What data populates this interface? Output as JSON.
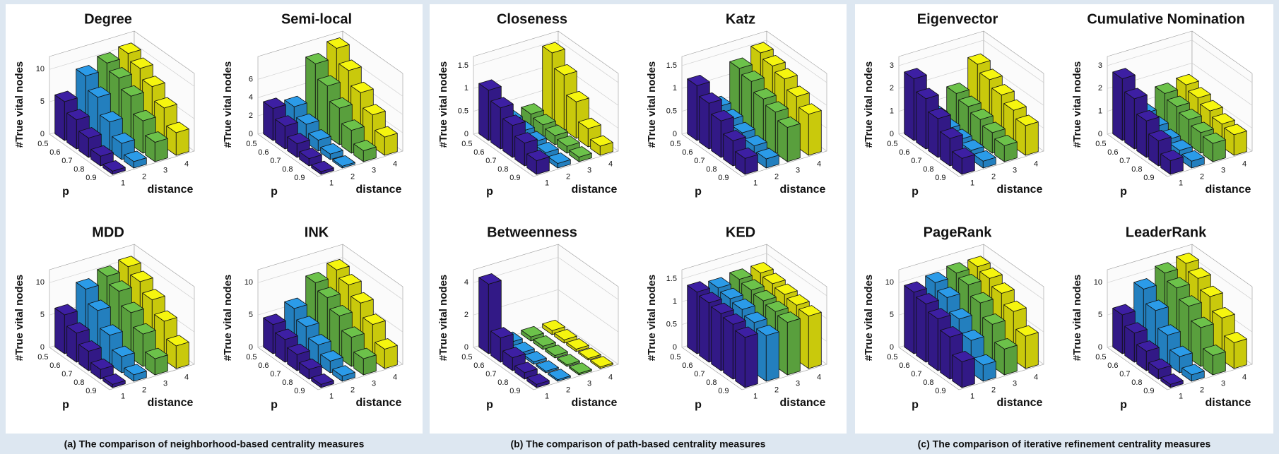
{
  "panels": [
    {
      "caption": "(a) The comparison of neighborhood-based centrality measures"
    },
    {
      "caption": "(b) The comparison of path-based centrality measures"
    },
    {
      "caption": "(c) The comparison of iterative refinement centrality measures"
    }
  ],
  "chart_data": [
    {
      "type": "bar3d",
      "title": "Degree",
      "zlabel": "#True vital nodes",
      "xlabel": "p",
      "ylabel": "distance",
      "x": [
        0.5,
        0.6,
        0.7,
        0.8,
        0.9
      ],
      "y": [
        1,
        2,
        3,
        4
      ],
      "colors": [
        "#3d1fa3",
        "#2b9be8",
        "#6cc24a",
        "#f5f50f"
      ],
      "zlim": [
        0,
        12
      ],
      "zticks": [
        0,
        5,
        10
      ],
      "values": [
        [
          6,
          4.5,
          3,
          1.5,
          0.5
        ],
        [
          9,
          7,
          4.5,
          2.5,
          1
        ],
        [
          10,
          9,
          7.5,
          5,
          3
        ],
        [
          10.5,
          9.5,
          8,
          6,
          3.5
        ]
      ]
    },
    {
      "type": "bar3d",
      "title": "Semi-local",
      "zlabel": "#True vital nodes",
      "xlabel": "p",
      "ylabel": "distance",
      "x": [
        0.5,
        0.6,
        0.7,
        0.8,
        0.9
      ],
      "y": [
        1,
        2,
        3,
        4
      ],
      "colors": [
        "#3d1fa3",
        "#2b9be8",
        "#6cc24a",
        "#f5f50f"
      ],
      "zlim": [
        0,
        8.5
      ],
      "zticks": [
        0,
        2,
        4,
        6
      ],
      "values": [
        [
          3.5,
          2.5,
          1.5,
          0.8,
          0.3
        ],
        [
          3,
          2,
          1.2,
          0.6,
          0.2
        ],
        [
          7,
          5.5,
          4,
          2.5,
          1.2
        ],
        [
          8,
          6.5,
          5,
          3.5,
          2
        ]
      ]
    },
    {
      "type": "bar3d",
      "title": "MDD",
      "zlabel": "#True vital nodes",
      "xlabel": "p",
      "ylabel": "distance",
      "x": [
        0.5,
        0.6,
        0.7,
        0.8,
        0.9
      ],
      "y": [
        1,
        2,
        3,
        4
      ],
      "colors": [
        "#3d1fa3",
        "#2b9be8",
        "#6cc24a",
        "#f5f50f"
      ],
      "zlim": [
        0,
        12
      ],
      "zticks": [
        0,
        5,
        10
      ],
      "values": [
        [
          6,
          4.5,
          3,
          1.5,
          0.5
        ],
        [
          9,
          7,
          4.5,
          2.5,
          1
        ],
        [
          10,
          9,
          7,
          5,
          2.5
        ],
        [
          10.5,
          9.5,
          8,
          6,
          3.5
        ]
      ]
    },
    {
      "type": "bar3d",
      "title": "INK",
      "zlabel": "#True vital nodes",
      "xlabel": "p",
      "ylabel": "distance",
      "x": [
        0.5,
        0.6,
        0.7,
        0.8,
        0.9
      ],
      "y": [
        1,
        2,
        3,
        4
      ],
      "colors": [
        "#3d1fa3",
        "#2b9be8",
        "#6cc24a",
        "#f5f50f"
      ],
      "zlim": [
        0,
        12
      ],
      "zticks": [
        0,
        5,
        10
      ],
      "values": [
        [
          4.5,
          3.5,
          2.5,
          1.5,
          0.5
        ],
        [
          6,
          4.5,
          3,
          1.8,
          0.8
        ],
        [
          9,
          8,
          6.5,
          4.5,
          2.5
        ],
        [
          10,
          9,
          7.5,
          5.5,
          3
        ]
      ]
    },
    {
      "type": "bar3d",
      "title": "Closeness",
      "zlabel": "#True vital nodes",
      "xlabel": "p",
      "ylabel": "distance",
      "x": [
        0.5,
        0.6,
        0.7,
        0.8,
        0.9
      ],
      "y": [
        1,
        2,
        3,
        4
      ],
      "colors": [
        "#3d1fa3",
        "#2b9be8",
        "#6cc24a",
        "#f5f50f"
      ],
      "zlim": [
        0,
        1.7
      ],
      "zticks": [
        0,
        0.5,
        1,
        1.5
      ],
      "values": [
        [
          1.1,
          0.9,
          0.7,
          0.5,
          0.3
        ],
        [
          0.3,
          0.25,
          0.2,
          0.15,
          0.1
        ],
        [
          0.3,
          0.25,
          0.2,
          0.15,
          0.1
        ],
        [
          1.5,
          1.2,
          0.8,
          0.4,
          0.2
        ]
      ]
    },
    {
      "type": "bar3d",
      "title": "Katz",
      "zlabel": "#True vital nodes",
      "xlabel": "p",
      "ylabel": "distance",
      "x": [
        0.5,
        0.6,
        0.7,
        0.8,
        0.9
      ],
      "y": [
        1,
        2,
        3,
        4
      ],
      "colors": [
        "#3d1fa3",
        "#2b9be8",
        "#6cc24a",
        "#f5f50f"
      ],
      "zlim": [
        0,
        1.7
      ],
      "zticks": [
        0,
        0.5,
        1,
        1.5
      ],
      "values": [
        [
          1.2,
          1,
          0.8,
          0.55,
          0.35
        ],
        [
          0.6,
          0.5,
          0.4,
          0.3,
          0.2
        ],
        [
          1.3,
          1.2,
          1,
          0.9,
          0.75
        ],
        [
          1.5,
          1.4,
          1.3,
          1.1,
          0.9
        ]
      ]
    },
    {
      "type": "bar3d",
      "title": "Betweenness",
      "zlabel": "#True vital nodes",
      "xlabel": "p",
      "ylabel": "distance",
      "x": [
        0.5,
        0.6,
        0.7,
        0.8,
        0.9
      ],
      "y": [
        1,
        2,
        3,
        4
      ],
      "colors": [
        "#3d1fa3",
        "#2b9be8",
        "#6cc24a",
        "#f5f50f"
      ],
      "zlim": [
        0,
        4.8
      ],
      "zticks": [
        0,
        2,
        4
      ],
      "values": [
        [
          4.3,
          1.5,
          0.8,
          0.4,
          0.2
        ],
        [
          0.3,
          0.2,
          0.15,
          0.1,
          0.1
        ],
        [
          0.25,
          0.2,
          0.15,
          0.1,
          0.1
        ],
        [
          0.25,
          0.2,
          0.15,
          0.1,
          0.1
        ]
      ]
    },
    {
      "type": "bar3d",
      "title": "KED",
      "zlabel": "#True vital nodes",
      "xlabel": "p",
      "ylabel": "distance",
      "x": [
        0.5,
        0.6,
        0.7,
        0.8,
        0.9
      ],
      "y": [
        1,
        2,
        3,
        4
      ],
      "colors": [
        "#3d1fa3",
        "#2b9be8",
        "#6cc24a",
        "#f5f50f"
      ],
      "zlim": [
        0,
        1.7
      ],
      "zticks": [
        0,
        0.5,
        1,
        1.5
      ],
      "values": [
        [
          1.35,
          1.3,
          1.25,
          1.2,
          1.1
        ],
        [
          1.3,
          1.25,
          1.2,
          1.1,
          1
        ],
        [
          1.35,
          1.3,
          1.25,
          1.2,
          1.15
        ],
        [
          1.35,
          1.3,
          1.25,
          1.2,
          1.15
        ]
      ]
    },
    {
      "type": "bar3d",
      "title": "Eigenvector",
      "zlabel": "#True vital nodes",
      "xlabel": "p",
      "ylabel": "distance",
      "x": [
        0.5,
        0.6,
        0.7,
        0.8,
        0.9
      ],
      "y": [
        1,
        2,
        3,
        4
      ],
      "colors": [
        "#3d1fa3",
        "#2b9be8",
        "#6cc24a",
        "#f5f50f"
      ],
      "zlim": [
        0,
        3.4
      ],
      "zticks": [
        0,
        1,
        2,
        3
      ],
      "values": [
        [
          2.7,
          2.2,
          1.7,
          1.2,
          0.7
        ],
        [
          0.8,
          0.6,
          0.5,
          0.4,
          0.3
        ],
        [
          1.5,
          1.3,
          1.1,
          0.9,
          0.7
        ],
        [
          2.5,
          2.2,
          1.9,
          1.6,
          1.3
        ]
      ]
    },
    {
      "type": "bar3d",
      "title": "Cumulative Nomination",
      "zlabel": "#True vital nodes",
      "xlabel": "p",
      "ylabel": "distance",
      "x": [
        0.5,
        0.6,
        0.7,
        0.8,
        0.9
      ],
      "y": [
        1,
        2,
        3,
        4
      ],
      "colors": [
        "#3d1fa3",
        "#2b9be8",
        "#6cc24a",
        "#f5f50f"
      ],
      "zlim": [
        0,
        3.4
      ],
      "zticks": [
        0,
        1,
        2,
        3
      ],
      "values": [
        [
          2.7,
          2.2,
          1.6,
          1.1,
          0.6
        ],
        [
          0.9,
          0.7,
          0.5,
          0.4,
          0.3
        ],
        [
          1.5,
          1.3,
          1.1,
          0.9,
          0.8
        ],
        [
          1.6,
          1.4,
          1.2,
          1,
          0.9
        ]
      ]
    },
    {
      "type": "bar3d",
      "title": "PageRank",
      "zlabel": "#True vital nodes",
      "xlabel": "p",
      "ylabel": "distance",
      "x": [
        0.5,
        0.6,
        0.7,
        0.8,
        0.9
      ],
      "y": [
        1,
        2,
        3,
        4
      ],
      "colors": [
        "#3d1fa3",
        "#2b9be8",
        "#6cc24a",
        "#f5f50f"
      ],
      "zlim": [
        0,
        12
      ],
      "zticks": [
        0,
        5,
        10
      ],
      "values": [
        [
          9.5,
          9,
          8,
          6.5,
          4
        ],
        [
          10,
          9,
          7,
          5,
          2.5
        ],
        [
          10.5,
          10,
          8.5,
          6.5,
          4
        ],
        [
          10.5,
          10,
          9,
          7.5,
          5
        ]
      ]
    },
    {
      "type": "bar3d",
      "title": "LeaderRank",
      "zlabel": "#True vital nodes",
      "xlabel": "p",
      "ylabel": "distance",
      "x": [
        0.5,
        0.6,
        0.7,
        0.8,
        0.9
      ],
      "y": [
        1,
        2,
        3,
        4
      ],
      "colors": [
        "#3d1fa3",
        "#2b9be8",
        "#6cc24a",
        "#f5f50f"
      ],
      "zlim": [
        0,
        12
      ],
      "zticks": [
        0,
        5,
        10
      ],
      "values": [
        [
          6,
          4.5,
          3,
          1.5,
          0.5
        ],
        [
          9,
          7,
          4.5,
          2.5,
          1
        ],
        [
          10.5,
          9.5,
          8,
          6,
          3
        ],
        [
          11,
          10,
          8.5,
          6.5,
          4
        ]
      ]
    }
  ]
}
